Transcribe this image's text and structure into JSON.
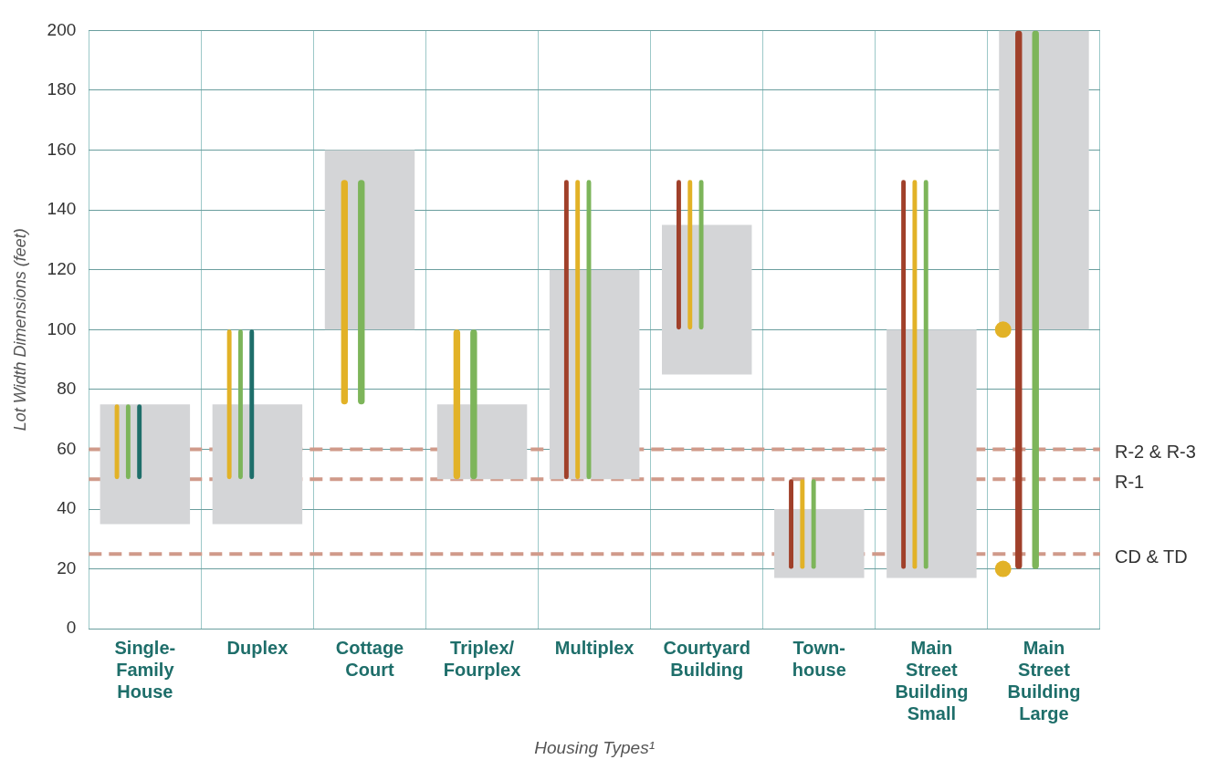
{
  "chart_data": {
    "type": "bar",
    "xlabel": "Housing Types¹",
    "ylabel": "Lot Width Dimensions (feet)",
    "categories": [
      "Single-\nFamily\nHouse",
      "Duplex",
      "Cottage\nCourt",
      "Triplex/\nFourplex",
      "Multiplex",
      "Courtyard\nBuilding",
      "Town-\nhouse",
      "Main\nStreet\nBuilding\nSmall",
      "Main\nStreet\nBuilding\nLarge"
    ],
    "series": [
      {
        "color": "#d4d5d7",
        "base": [
          35,
          35,
          100,
          50,
          50,
          85,
          17,
          17,
          100
        ],
        "values": [
          40,
          40,
          60,
          25,
          70,
          50,
          23,
          83,
          100
        ]
      },
      {
        "color": "#a0402a",
        "base": [
          null,
          null,
          null,
          null,
          50,
          100,
          20,
          20,
          20
        ],
        "values": [
          null,
          null,
          null,
          null,
          100,
          50,
          30,
          130,
          180
        ]
      },
      {
        "color": "#e2b227",
        "base": [
          50,
          50,
          75,
          50,
          50,
          100,
          20,
          20,
          null
        ],
        "values": [
          25,
          50,
          75,
          50,
          100,
          50,
          30,
          130,
          null
        ]
      },
      {
        "color": "#7db55a",
        "base": [
          50,
          50,
          75,
          50,
          50,
          100,
          20,
          20,
          20
        ],
        "values": [
          25,
          50,
          75,
          50,
          100,
          50,
          30,
          130,
          180
        ]
      },
      {
        "color": "#1e6e6a",
        "base": [
          50,
          50,
          null,
          null,
          null,
          null,
          null,
          null,
          null
        ],
        "values": [
          25,
          50,
          null,
          null,
          null,
          null,
          null,
          null,
          null
        ]
      },
      {
        "type": "scatter",
        "color": "#e2b227",
        "x": [
          "Main\nStreet\nBuilding\nLarge",
          "Main\nStreet\nBuilding\nLarge"
        ],
        "values": [
          20,
          100
        ]
      }
    ],
    "ylim": [
      0,
      200
    ],
    "yticks": [
      0,
      20,
      40,
      60,
      80,
      100,
      120,
      140,
      160,
      180,
      200
    ],
    "ref_lines": [
      {
        "axis": "y",
        "value": 60,
        "label": "R-2 & R-3",
        "color": "#d09a8a",
        "line_style": "dashed"
      },
      {
        "axis": "y",
        "value": 50,
        "label": "R-1",
        "color": "#d09a8a",
        "line_style": "dashed"
      },
      {
        "axis": "y",
        "value": 25,
        "label": "CD & TD",
        "color": "#d09a8a",
        "line_style": "dashed"
      }
    ],
    "grid": true,
    "legend": false,
    "marker": "circle"
  }
}
